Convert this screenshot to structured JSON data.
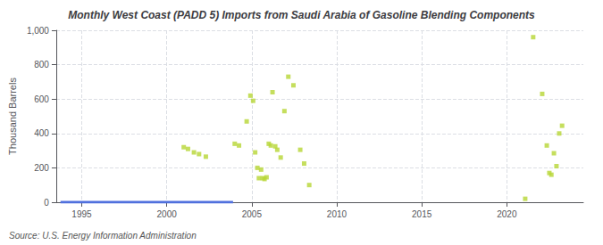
{
  "chart_data": {
    "type": "scatter",
    "title": "Monthly West Coast (PADD 5) Imports from Saudi Arabia of Gasoline Blending Components",
    "ylabel": "Thousand Barrels",
    "annotations": [
      "Source: U.S. Energy Information Administration"
    ],
    "marker": "square",
    "x": [
      2001.0,
      2001.25,
      2001.6,
      2001.9,
      2002.3,
      2004.0,
      2004.25,
      2004.7,
      2004.92,
      2005.08,
      2005.2,
      2005.33,
      2005.42,
      2005.55,
      2005.65,
      2005.75,
      2005.87,
      2006.0,
      2006.12,
      2006.22,
      2006.38,
      2006.5,
      2006.7,
      2006.92,
      2007.15,
      2007.45,
      2007.85,
      2008.08,
      2008.38,
      2021.08,
      2021.55,
      2022.08,
      2022.35,
      2022.5,
      2022.62,
      2022.77,
      2022.92,
      2023.08,
      2023.25
    ],
    "values": [
      320,
      310,
      290,
      280,
      265,
      340,
      330,
      470,
      620,
      590,
      290,
      200,
      140,
      190,
      140,
      135,
      145,
      340,
      330,
      640,
      325,
      305,
      260,
      530,
      730,
      680,
      305,
      225,
      100,
      20,
      960,
      630,
      330,
      170,
      160,
      285,
      210,
      400,
      445
    ],
    "segments": [
      {
        "x": [
          1993.75,
          2003.9
        ],
        "y": 0
      }
    ],
    "xlim": [
      1993.5,
      2024.5
    ],
    "ylim": [
      0,
      1000
    ],
    "xticks": [
      1995,
      2000,
      2005,
      2010,
      2015,
      2020
    ],
    "yticks": [
      0,
      200,
      400,
      600,
      800,
      {
        "value": 1000,
        "label": "1,000"
      }
    ],
    "grid": true
  }
}
